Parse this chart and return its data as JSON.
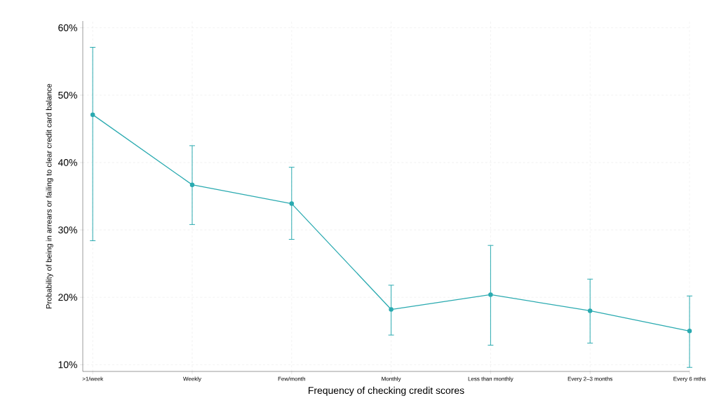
{
  "chart_data": {
    "type": "line",
    "xlabel": "Frequency of checking credit scores",
    "ylabel": "Probability of being in arrears or failing to clear credit card balance",
    "categories": [
      ">1/week",
      "Weekly",
      "Few/month",
      "Monthly",
      "Less than monthly",
      "Every 2–3 months",
      "Every 6 mths"
    ],
    "values": [
      47.1,
      36.7,
      33.9,
      18.2,
      20.4,
      18.0,
      15.0
    ],
    "errors": [
      [
        28.4,
        57.1
      ],
      [
        30.8,
        42.5
      ],
      [
        28.6,
        39.3
      ],
      [
        14.4,
        21.8
      ],
      [
        12.9,
        27.7
      ],
      [
        13.2,
        22.7
      ],
      [
        9.6,
        20.2
      ]
    ],
    "color": "#2aaab0",
    "marker": "circle",
    "line_style": "solid",
    "grid": true,
    "ylim": [
      9,
      61
    ],
    "yticks": [
      {
        "value": 10,
        "label": "10%"
      },
      {
        "value": 20,
        "label": "20%"
      },
      {
        "value": 30,
        "label": "30%"
      },
      {
        "value": 40,
        "label": "40%"
      },
      {
        "value": 50,
        "label": "50%"
      },
      {
        "value": 60,
        "label": "60%"
      }
    ]
  }
}
